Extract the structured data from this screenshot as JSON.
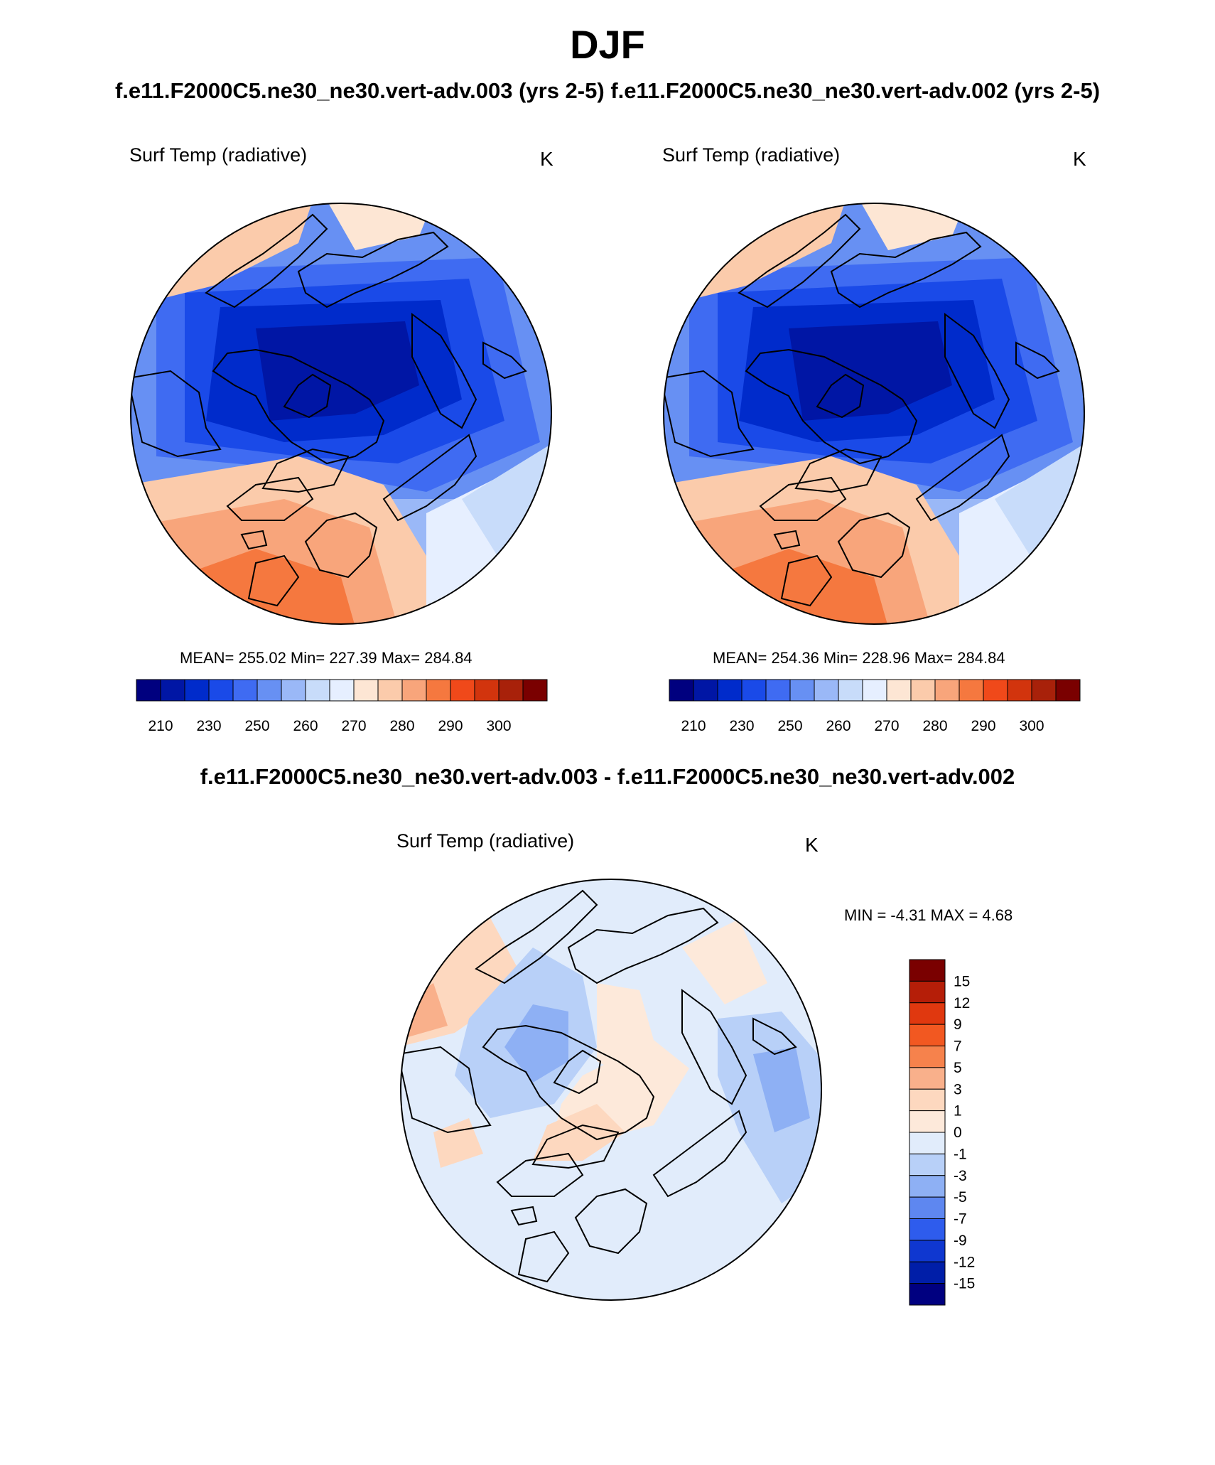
{
  "figure": {
    "season": "DJF",
    "top_subtitle_left": "f.e11.F2000C5.ne30_ne30.vert-adv.003 (yrs 2-5)",
    "top_subtitle_right": "f.e11.F2000C5.ne30_ne30.vert-adv.002 (yrs 2-5)",
    "diff_subtitle": "f.e11.F2000C5.ne30_ne30.vert-adv.003 - f.e11.F2000C5.ne30_ne30.vert-adv.002"
  },
  "chart_data": [
    {
      "type": "heatmap",
      "projection": "north-polar-stereographic",
      "case": "f.e11.F2000C5.ne30_ne30.vert-adv.003 (yrs 2-5)",
      "variable": "Surf Temp (radiative)",
      "units": "K",
      "stats_text": "MEAN= 255.02  Min= 227.39  Max= 284.84",
      "mean": 255.02,
      "min": 227.39,
      "max": 284.84,
      "colorbar": {
        "orientation": "horizontal",
        "tick_labels": [
          "210",
          "230",
          "250",
          "260",
          "270",
          "280",
          "290",
          "300"
        ],
        "colors": [
          "#00007f",
          "#0016a5",
          "#002bcb",
          "#1a4ae8",
          "#3f6bf2",
          "#6790f3",
          "#9ab8f7",
          "#c8dcfa",
          "#e6efff",
          "#fde6d4",
          "#fbcbab",
          "#f8a57b",
          "#f5783f",
          "#f0491a",
          "#d2340d",
          "#a8210a",
          "#7a0000"
        ]
      }
    },
    {
      "type": "heatmap",
      "projection": "north-polar-stereographic",
      "case": "f.e11.F2000C5.ne30_ne30.vert-adv.002 (yrs 2-5)",
      "variable": "Surf Temp (radiative)",
      "units": "K",
      "stats_text": "MEAN= 254.36  Min= 228.96  Max= 284.84",
      "mean": 254.36,
      "min": 228.96,
      "max": 284.84,
      "colorbar": {
        "orientation": "horizontal",
        "tick_labels": [
          "210",
          "230",
          "250",
          "260",
          "270",
          "280",
          "290",
          "300"
        ],
        "colors": [
          "#00007f",
          "#0016a5",
          "#002bcb",
          "#1a4ae8",
          "#3f6bf2",
          "#6790f3",
          "#9ab8f7",
          "#c8dcfa",
          "#e6efff",
          "#fde6d4",
          "#fbcbab",
          "#f8a57b",
          "#f5783f",
          "#f0491a",
          "#d2340d",
          "#a8210a",
          "#7a0000"
        ]
      }
    },
    {
      "type": "heatmap",
      "projection": "north-polar-stereographic",
      "case": "f.e11.F2000C5.ne30_ne30.vert-adv.003 - f.e11.F2000C5.ne30_ne30.vert-adv.002",
      "variable": "Surf Temp (radiative)",
      "units": "K",
      "stats_text": "MIN =  -4.31 MAX =   4.68",
      "min": -4.31,
      "max": 4.68,
      "colorbar": {
        "orientation": "vertical",
        "tick_labels": [
          "15",
          "12",
          "9",
          "7",
          "5",
          "3",
          "1",
          "0",
          "-1",
          "-3",
          "-5",
          "-7",
          "-9",
          "-12",
          "-15"
        ],
        "colors_top_to_bottom": [
          "#7a0000",
          "#b51e08",
          "#e0380f",
          "#f25821",
          "#f6824c",
          "#f9b08b",
          "#fdd8bf",
          "#fde9da",
          "#e1ecfb",
          "#b8d0f8",
          "#8eb0f4",
          "#5e87f0",
          "#2e5ced",
          "#0f37d0",
          "#001ea8",
          "#000080"
        ]
      }
    }
  ]
}
